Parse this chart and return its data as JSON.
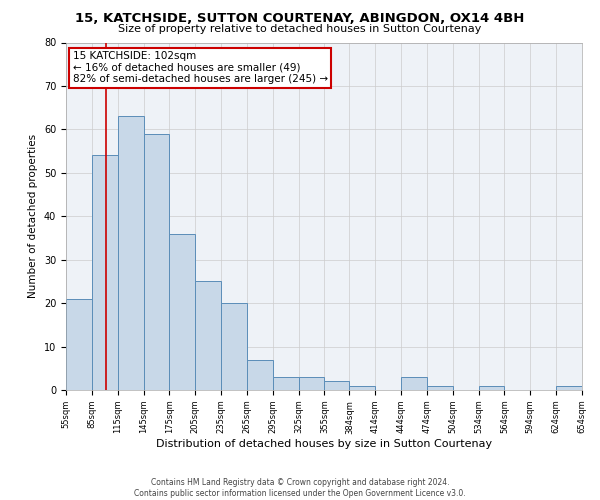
{
  "title": "15, KATCHSIDE, SUTTON COURTENAY, ABINGDON, OX14 4BH",
  "subtitle": "Size of property relative to detached houses in Sutton Courtenay",
  "xlabel": "Distribution of detached houses by size in Sutton Courtenay",
  "ylabel": "Number of detached properties",
  "bar_color": "#c8d8e8",
  "bar_edge_color": "#5b8db8",
  "grid_color": "#cccccc",
  "background_color": "#eef2f7",
  "annotation_line1": "15 KATCHSIDE: 102sqm",
  "annotation_line2": "← 16% of detached houses are smaller (49)",
  "annotation_line3": "82% of semi-detached houses are larger (245) →",
  "annotation_box_color": "#ffffff",
  "annotation_box_edge_color": "#cc0000",
  "vline_x": 102,
  "vline_color": "#cc0000",
  "footer_text": "Contains HM Land Registry data © Crown copyright and database right 2024.\nContains public sector information licensed under the Open Government Licence v3.0.",
  "bins": [
    55,
    85,
    115,
    145,
    175,
    205,
    235,
    265,
    295,
    325,
    355,
    384,
    414,
    444,
    474,
    504,
    534,
    564,
    594,
    624,
    654
  ],
  "bar_heights": [
    21,
    54,
    63,
    59,
    36,
    25,
    20,
    7,
    3,
    3,
    2,
    1,
    0,
    3,
    1,
    0,
    1,
    0,
    0,
    1
  ],
  "tick_labels": [
    "55sqm",
    "85sqm",
    "115sqm",
    "145sqm",
    "175sqm",
    "205sqm",
    "235sqm",
    "265sqm",
    "295sqm",
    "325sqm",
    "355sqm",
    "384sqm",
    "414sqm",
    "444sqm",
    "474sqm",
    "504sqm",
    "534sqm",
    "564sqm",
    "594sqm",
    "624sqm",
    "654sqm"
  ],
  "ylim": [
    0,
    80
  ],
  "yticks": [
    0,
    10,
    20,
    30,
    40,
    50,
    60,
    70,
    80
  ],
  "title_fontsize": 9.5,
  "subtitle_fontsize": 8,
  "ylabel_fontsize": 7.5,
  "xlabel_fontsize": 8,
  "tick_fontsize": 6,
  "footer_fontsize": 5.5,
  "annotation_fontsize": 7.5
}
